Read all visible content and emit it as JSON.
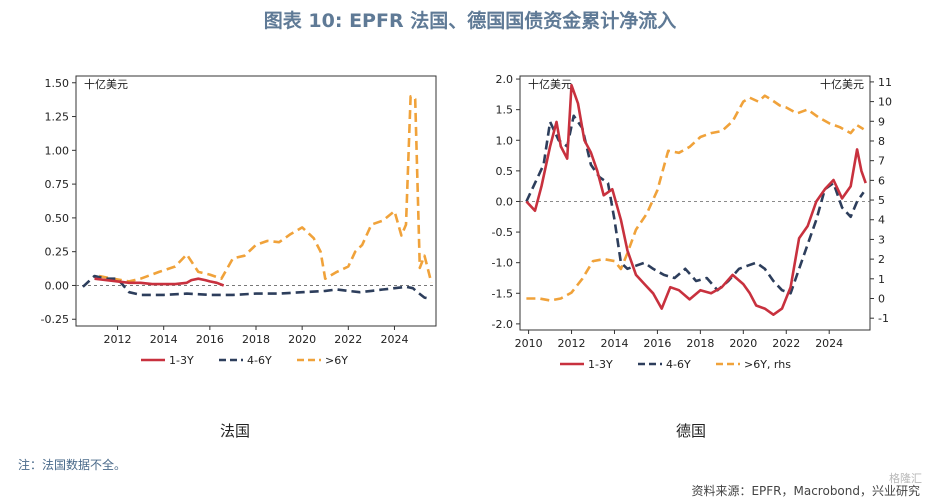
{
  "title": "图表 10: EPFR 法国、德国国债资金累计净流入",
  "note": "注：法国数据不全。",
  "source": "资料来源：EPFR，Macrobond，兴业研究",
  "watermark": "格隆汇",
  "colors": {
    "red": "#c8313e",
    "navy": "#2d3e5c",
    "orange": "#f0a23a",
    "title": "#5f7a96"
  },
  "chart_data": [
    {
      "type": "line",
      "subtitle": "法国",
      "unit_label": "十亿美元",
      "ylim": [
        -0.3,
        1.55
      ],
      "yticks": [
        -0.25,
        0.0,
        0.25,
        0.5,
        0.75,
        1.0,
        1.25,
        1.5
      ],
      "ytick_labels": [
        "-0.25",
        "0.00",
        "0.25",
        "0.50",
        "0.75",
        "1.00",
        "1.25",
        "1.50"
      ],
      "xlim": [
        2010.2,
        2025.8
      ],
      "xticks": [
        2012,
        2014,
        2016,
        2018,
        2020,
        2022,
        2024
      ],
      "xtick_labels": [
        "2012",
        "2014",
        "2016",
        "2018",
        "2020",
        "2022",
        "2024"
      ],
      "zero_line": true,
      "legend": [
        "1-3Y",
        "4-6Y",
        ">6Y"
      ],
      "series": [
        {
          "name": "1-3Y",
          "color": "red",
          "style": "solid",
          "axis": "left",
          "x": [
            2011.0,
            2011.5,
            2012.0,
            2012.5,
            2013.0,
            2013.5,
            2014.0,
            2014.5,
            2015.0,
            2015.2,
            2015.5,
            2015.8,
            2016.0,
            2016.3,
            2016.6
          ],
          "y": [
            0.05,
            0.04,
            0.03,
            0.02,
            0.02,
            0.01,
            0.01,
            0.01,
            0.02,
            0.04,
            0.05,
            0.04,
            0.03,
            0.02,
            0.0
          ]
        },
        {
          "name": "4-6Y",
          "color": "navy",
          "style": "dash",
          "axis": "left",
          "x": [
            2010.5,
            2011.0,
            2011.5,
            2012.0,
            2012.5,
            2013.0,
            2014.0,
            2015.0,
            2016.0,
            2017.0,
            2018.0,
            2019.0,
            2020.0,
            2021.0,
            2021.5,
            2022.0,
            2022.5,
            2023.0,
            2023.5,
            2024.0,
            2024.5,
            2024.8,
            2025.0,
            2025.3,
            2025.6
          ],
          "y": [
            -0.01,
            0.07,
            0.05,
            0.05,
            -0.05,
            -0.07,
            -0.07,
            -0.06,
            -0.07,
            -0.07,
            -0.06,
            -0.06,
            -0.05,
            -0.04,
            -0.03,
            -0.04,
            -0.05,
            -0.04,
            -0.03,
            -0.02,
            -0.01,
            -0.02,
            -0.05,
            -0.09,
            -0.1
          ]
        },
        {
          "name": ">6Y",
          "color": "orange",
          "style": "dash",
          "axis": "left",
          "x": [
            2011.2,
            2011.8,
            2012.5,
            2013.0,
            2013.8,
            2014.5,
            2015.0,
            2015.5,
            2016.0,
            2016.5,
            2017.0,
            2017.5,
            2018.0,
            2018.5,
            2019.0,
            2019.5,
            2020.0,
            2020.5,
            2020.8,
            2021.0,
            2021.5,
            2022.0,
            2022.3,
            2022.6,
            2023.0,
            2023.5,
            2024.0,
            2024.3,
            2024.5,
            2024.7,
            2024.9,
            2025.1,
            2025.3,
            2025.6
          ],
          "y": [
            0.07,
            0.05,
            0.03,
            0.05,
            0.1,
            0.14,
            0.23,
            0.1,
            0.08,
            0.05,
            0.2,
            0.22,
            0.3,
            0.33,
            0.32,
            0.38,
            0.43,
            0.35,
            0.25,
            0.05,
            0.1,
            0.14,
            0.25,
            0.3,
            0.45,
            0.48,
            0.55,
            0.37,
            0.45,
            1.4,
            1.38,
            0.13,
            0.22,
            0.02
          ]
        }
      ]
    },
    {
      "type": "line",
      "subtitle": "德国",
      "unit_label_left": "十亿美元",
      "unit_label_right": "十亿美元",
      "ylim": [
        -2.1,
        2.05
      ],
      "yticks": [
        -2.0,
        -1.5,
        -1.0,
        -0.5,
        0.0,
        0.5,
        1.0,
        1.5,
        2.0
      ],
      "ytick_labels": [
        "-2.0",
        "-1.5",
        "-1.0",
        "-0.5",
        "0.0",
        "0.5",
        "1.0",
        "1.5",
        "2.0"
      ],
      "y2lim": [
        -1.6,
        11.3
      ],
      "y2ticks": [
        -1,
        0,
        1,
        2,
        3,
        4,
        5,
        6,
        7,
        8,
        9,
        10,
        11
      ],
      "y2tick_labels": [
        "-1",
        "0",
        "1",
        "2",
        "3",
        "4",
        "5",
        "6",
        "7",
        "8",
        "9",
        "10",
        "11"
      ],
      "xlim": [
        2009.6,
        2025.9
      ],
      "xticks": [
        2010,
        2012,
        2014,
        2016,
        2018,
        2020,
        2022,
        2024
      ],
      "xtick_labels": [
        "2010",
        "2012",
        "2014",
        "2016",
        "2018",
        "2020",
        "2022",
        "2024"
      ],
      "zero_line": true,
      "legend": [
        "1-3Y",
        "4-6Y",
        ">6Y, rhs"
      ],
      "series": [
        {
          "name": "1-3Y",
          "color": "red",
          "style": "solid",
          "axis": "left",
          "x": [
            2009.9,
            2010.3,
            2010.6,
            2011.0,
            2011.3,
            2011.5,
            2011.8,
            2012.0,
            2012.3,
            2012.6,
            2012.9,
            2013.2,
            2013.5,
            2013.9,
            2014.3,
            2014.6,
            2015.0,
            2015.4,
            2015.8,
            2016.2,
            2016.6,
            2017.0,
            2017.5,
            2018.0,
            2018.5,
            2019.0,
            2019.5,
            2020.0,
            2020.3,
            2020.6,
            2021.0,
            2021.4,
            2021.8,
            2022.2,
            2022.6,
            2023.0,
            2023.4,
            2023.8,
            2024.2,
            2024.6,
            2025.0,
            2025.3,
            2025.5,
            2025.7
          ],
          "y": [
            0.0,
            -0.15,
            0.25,
            0.9,
            1.3,
            0.9,
            0.7,
            1.9,
            1.6,
            1.0,
            0.8,
            0.5,
            0.1,
            0.2,
            -0.3,
            -0.8,
            -1.2,
            -1.35,
            -1.5,
            -1.75,
            -1.4,
            -1.45,
            -1.6,
            -1.45,
            -1.5,
            -1.4,
            -1.2,
            -1.35,
            -1.5,
            -1.7,
            -1.75,
            -1.85,
            -1.75,
            -1.4,
            -0.6,
            -0.4,
            0.0,
            0.2,
            0.35,
            0.05,
            0.25,
            0.85,
            0.5,
            0.3
          ]
        },
        {
          "name": "4-6Y",
          "color": "navy",
          "style": "dash",
          "axis": "left",
          "x": [
            2009.9,
            2010.3,
            2010.7,
            2011.0,
            2011.4,
            2011.8,
            2012.1,
            2012.5,
            2012.9,
            2013.3,
            2013.7,
            2014.0,
            2014.3,
            2014.6,
            2015.0,
            2015.4,
            2015.8,
            2016.3,
            2016.8,
            2017.3,
            2017.8,
            2018.3,
            2018.8,
            2019.3,
            2019.8,
            2020.2,
            2020.6,
            2021.0,
            2021.4,
            2021.8,
            2022.2,
            2022.6,
            2023.0,
            2023.4,
            2023.8,
            2024.2,
            2024.6,
            2025.0,
            2025.3,
            2025.6
          ],
          "y": [
            0.0,
            0.3,
            0.6,
            1.3,
            1.0,
            0.9,
            1.4,
            1.2,
            0.6,
            0.4,
            0.3,
            -0.3,
            -1.0,
            -1.1,
            -1.05,
            -1.0,
            -1.1,
            -1.2,
            -1.25,
            -1.1,
            -1.3,
            -1.25,
            -1.45,
            -1.3,
            -1.1,
            -1.05,
            -1.0,
            -1.1,
            -1.3,
            -1.45,
            -1.5,
            -1.1,
            -0.7,
            -0.3,
            0.2,
            0.3,
            -0.1,
            -0.25,
            0.0,
            0.15
          ]
        },
        {
          "name": ">6Y, rhs",
          "color": "orange",
          "style": "dash",
          "axis": "right",
          "x": [
            2009.9,
            2010.5,
            2011.0,
            2011.5,
            2012.0,
            2012.5,
            2013.0,
            2013.5,
            2014.0,
            2014.3,
            2014.6,
            2015.0,
            2015.5,
            2016.0,
            2016.5,
            2017.0,
            2017.5,
            2018.0,
            2018.5,
            2019.0,
            2019.5,
            2020.0,
            2020.3,
            2020.7,
            2021.0,
            2021.3,
            2021.7,
            2022.0,
            2022.5,
            2023.0,
            2023.5,
            2024.0,
            2024.5,
            2025.0,
            2025.3,
            2025.6
          ],
          "y": [
            0.0,
            0.0,
            -0.1,
            0.0,
            0.3,
            1.0,
            1.9,
            2.0,
            1.9,
            1.5,
            2.3,
            3.5,
            4.3,
            5.5,
            7.5,
            7.4,
            7.7,
            8.2,
            8.4,
            8.5,
            9.0,
            10.0,
            10.2,
            10.0,
            10.3,
            10.1,
            9.8,
            9.7,
            9.4,
            9.6,
            9.2,
            8.9,
            8.7,
            8.4,
            8.8,
            8.6
          ]
        }
      ]
    }
  ]
}
